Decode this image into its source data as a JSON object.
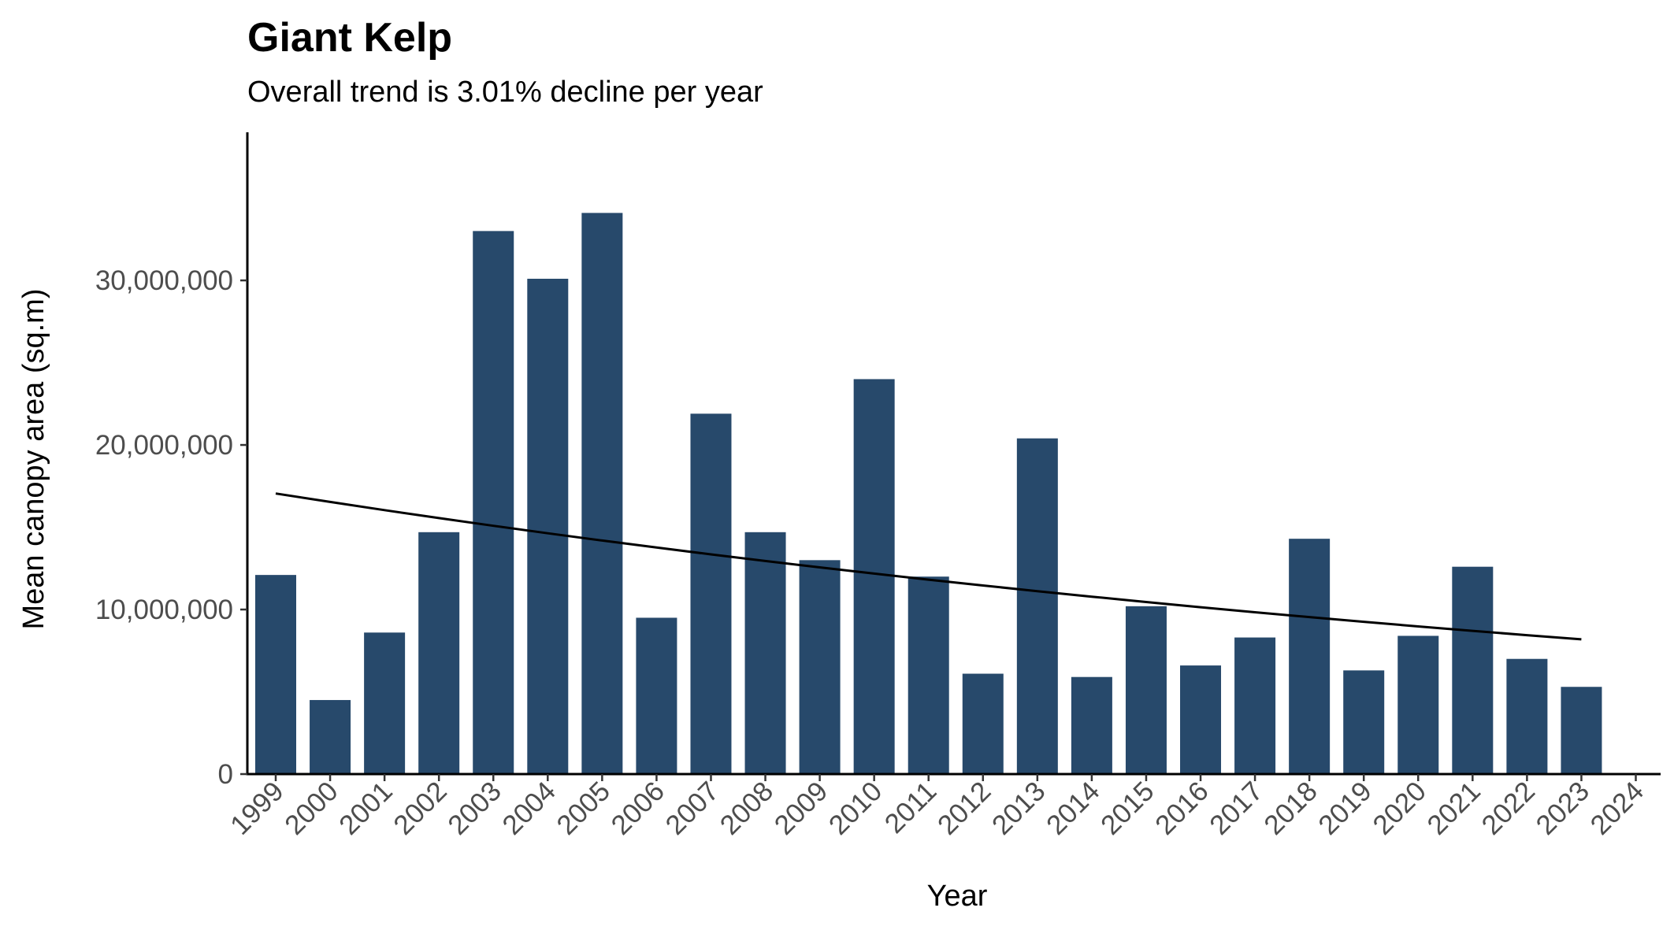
{
  "chart_data": {
    "type": "bar",
    "title": "Giant Kelp",
    "subtitle": "Overall trend is 3.01% decline per year",
    "xlabel": "Year",
    "ylabel": "Mean canopy area (sq.m)",
    "categories": [
      "1999",
      "2000",
      "2001",
      "2002",
      "2003",
      "2004",
      "2005",
      "2006",
      "2007",
      "2008",
      "2009",
      "2010",
      "2011",
      "2012",
      "2013",
      "2014",
      "2015",
      "2016",
      "2017",
      "2018",
      "2019",
      "2020",
      "2021",
      "2022",
      "2023",
      "2024"
    ],
    "values": [
      12100000,
      4500000,
      8600000,
      14700000,
      33000000,
      30100000,
      34100000,
      9500000,
      21900000,
      14700000,
      13000000,
      24000000,
      12000000,
      6100000,
      20400000,
      5900000,
      10200000,
      6600000,
      8300000,
      14300000,
      6300000,
      8400000,
      12600000,
      7000000,
      5300000,
      null
    ],
    "trend": {
      "name": "",
      "x": [
        "1999",
        "2023"
      ],
      "start_value": 17050000,
      "annual_change": -0.0301
    },
    "yticks": [
      0,
      10000000,
      20000000,
      30000000
    ],
    "ytick_labels": [
      "0",
      "10,000,000",
      "20,000,000",
      "30,000,000"
    ],
    "ylim": [
      0,
      39000000
    ],
    "grid": false,
    "legend": "none",
    "colors": {
      "bar": "#27496b",
      "trend": "#000000",
      "axis": "#000000",
      "tick_label": "#4d4d4d"
    }
  }
}
